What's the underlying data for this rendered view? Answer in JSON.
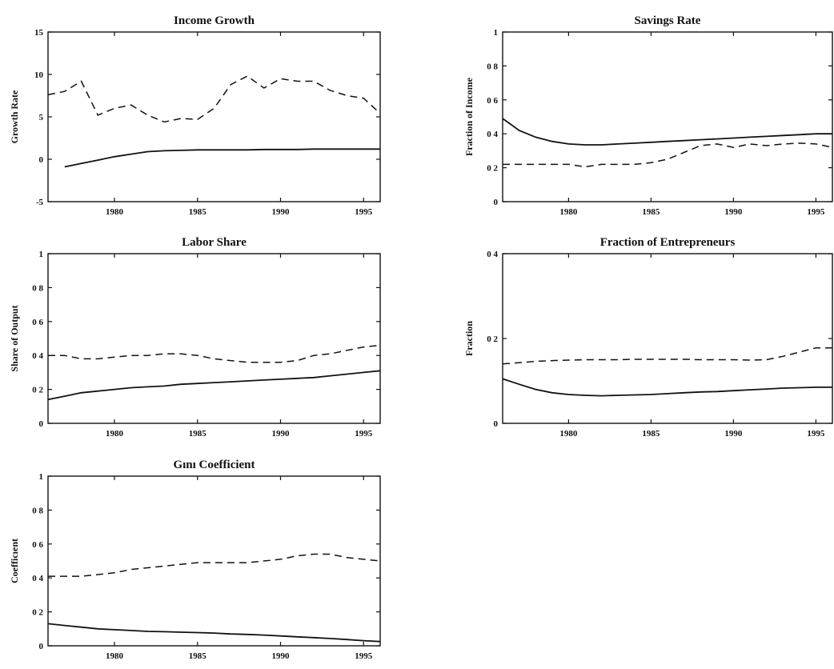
{
  "chart_data": [
    {
      "type": "line",
      "title": "Income Growth",
      "xlabel": "",
      "ylabel": "Growth Rate",
      "xlim": [
        1976,
        1996
      ],
      "ylim": [
        -5,
        15
      ],
      "xticks": [
        1980,
        1985,
        1990,
        1995
      ],
      "yticks": [
        -5,
        0,
        5,
        10,
        15
      ],
      "series": [
        {
          "style": "dashed",
          "x": [
            1976,
            1977,
            1978,
            1979,
            1980,
            1981,
            1982,
            1983,
            1984,
            1985,
            1986,
            1987,
            1988,
            1989,
            1990,
            1991,
            1992,
            1993,
            1994,
            1995,
            1996
          ],
          "values": [
            7.6,
            8.0,
            9.2,
            5.2,
            6.0,
            6.4,
            5.2,
            4.4,
            4.8,
            4.7,
            6.0,
            8.8,
            9.8,
            8.4,
            9.5,
            9.2,
            9.2,
            8.1,
            7.5,
            7.2,
            5.4
          ]
        },
        {
          "style": "solid",
          "x": [
            1977,
            1978,
            1979,
            1980,
            1981,
            1982,
            1983,
            1984,
            1985,
            1986,
            1987,
            1988,
            1989,
            1990,
            1991,
            1992,
            1993,
            1994,
            1995,
            1996
          ],
          "values": [
            -0.9,
            -0.5,
            -0.1,
            0.3,
            0.6,
            0.9,
            1.0,
            1.05,
            1.1,
            1.1,
            1.1,
            1.1,
            1.15,
            1.15,
            1.15,
            1.2,
            1.2,
            1.2,
            1.2,
            1.2
          ]
        }
      ]
    },
    {
      "type": "line",
      "title": "Savings Rate",
      "xlabel": "",
      "ylabel": "Fraction of Income",
      "xlim": [
        1976,
        1996
      ],
      "ylim": [
        0,
        1
      ],
      "xticks": [
        1980,
        1985,
        1990,
        1995
      ],
      "yticks": [
        0,
        0.2,
        0.4,
        0.6,
        0.8,
        1
      ],
      "ytick_labels": [
        "0",
        "0 2",
        "0 4",
        "0 6",
        "0 8",
        "1"
      ],
      "series": [
        {
          "style": "solid",
          "x": [
            1976,
            1977,
            1978,
            1979,
            1980,
            1981,
            1982,
            1983,
            1984,
            1985,
            1986,
            1987,
            1988,
            1989,
            1990,
            1991,
            1992,
            1993,
            1994,
            1995,
            1996
          ],
          "values": [
            0.49,
            0.42,
            0.38,
            0.355,
            0.34,
            0.335,
            0.335,
            0.34,
            0.345,
            0.35,
            0.355,
            0.36,
            0.365,
            0.37,
            0.375,
            0.38,
            0.385,
            0.39,
            0.395,
            0.4,
            0.4
          ]
        },
        {
          "style": "dashed",
          "x": [
            1976,
            1977,
            1978,
            1979,
            1980,
            1981,
            1982,
            1983,
            1984,
            1985,
            1986,
            1987,
            1988,
            1989,
            1990,
            1991,
            1992,
            1993,
            1994,
            1995,
            1996
          ],
          "values": [
            0.22,
            0.22,
            0.22,
            0.22,
            0.22,
            0.205,
            0.22,
            0.22,
            0.22,
            0.23,
            0.25,
            0.29,
            0.33,
            0.34,
            0.32,
            0.34,
            0.33,
            0.34,
            0.345,
            0.34,
            0.32
          ]
        }
      ]
    },
    {
      "type": "line",
      "title": "Labor Share",
      "xlabel": "",
      "ylabel": "Share of Output",
      "xlim": [
        1976,
        1996
      ],
      "ylim": [
        0,
        1
      ],
      "xticks": [
        1980,
        1985,
        1990,
        1995
      ],
      "yticks": [
        0,
        0.2,
        0.4,
        0.6,
        0.8,
        1
      ],
      "ytick_labels": [
        "0",
        "0 2",
        "0 4",
        "0 6",
        "0 8",
        "1"
      ],
      "series": [
        {
          "style": "dashed",
          "x": [
            1976,
            1977,
            1978,
            1979,
            1980,
            1981,
            1982,
            1983,
            1984,
            1985,
            1986,
            1987,
            1988,
            1989,
            1990,
            1991,
            1992,
            1993,
            1994,
            1995,
            1996
          ],
          "values": [
            0.4,
            0.4,
            0.38,
            0.38,
            0.39,
            0.4,
            0.4,
            0.41,
            0.41,
            0.4,
            0.38,
            0.37,
            0.36,
            0.36,
            0.36,
            0.37,
            0.4,
            0.41,
            0.43,
            0.45,
            0.46
          ]
        },
        {
          "style": "solid",
          "x": [
            1976,
            1977,
            1978,
            1979,
            1980,
            1981,
            1982,
            1983,
            1984,
            1985,
            1986,
            1987,
            1988,
            1989,
            1990,
            1991,
            1992,
            1993,
            1994,
            1995,
            1996
          ],
          "values": [
            0.14,
            0.16,
            0.18,
            0.19,
            0.2,
            0.21,
            0.215,
            0.22,
            0.23,
            0.235,
            0.24,
            0.245,
            0.25,
            0.255,
            0.26,
            0.265,
            0.27,
            0.28,
            0.29,
            0.3,
            0.31
          ]
        }
      ]
    },
    {
      "type": "line",
      "title": "Fraction of Entrepreneurs",
      "xlabel": "",
      "ylabel": "Fraction",
      "xlim": [
        1976,
        1996
      ],
      "ylim": [
        0,
        0.4
      ],
      "xticks": [
        1980,
        1985,
        1990,
        1995
      ],
      "yticks": [
        0,
        0.2,
        0.4
      ],
      "ytick_labels": [
        "0",
        "0 2",
        "0 4"
      ],
      "series": [
        {
          "style": "dashed",
          "x": [
            1976,
            1977,
            1978,
            1979,
            1980,
            1981,
            1982,
            1983,
            1984,
            1985,
            1986,
            1987,
            1988,
            1989,
            1990,
            1991,
            1992,
            1993,
            1994,
            1995,
            1996
          ],
          "values": [
            0.14,
            0.143,
            0.146,
            0.148,
            0.149,
            0.15,
            0.15,
            0.15,
            0.151,
            0.151,
            0.151,
            0.151,
            0.15,
            0.15,
            0.15,
            0.149,
            0.15,
            0.158,
            0.168,
            0.178,
            0.178
          ]
        },
        {
          "style": "solid",
          "x": [
            1976,
            1977,
            1978,
            1979,
            1980,
            1981,
            1982,
            1983,
            1984,
            1985,
            1986,
            1987,
            1988,
            1989,
            1990,
            1991,
            1992,
            1993,
            1994,
            1995,
            1996
          ],
          "values": [
            0.105,
            0.092,
            0.08,
            0.072,
            0.068,
            0.066,
            0.065,
            0.066,
            0.067,
            0.068,
            0.07,
            0.072,
            0.074,
            0.075,
            0.077,
            0.079,
            0.081,
            0.083,
            0.084,
            0.085,
            0.085
          ]
        }
      ]
    },
    {
      "type": "line",
      "title": "Gını Coefficient",
      "xlabel": "",
      "ylabel": "Coefficıent",
      "xlim": [
        1976,
        1996
      ],
      "ylim": [
        0,
        1
      ],
      "xticks": [
        1980,
        1985,
        1990,
        1995
      ],
      "yticks": [
        0,
        0.2,
        0.4,
        0.6,
        0.8,
        1
      ],
      "ytick_labels": [
        "0",
        "0 2",
        "0 4",
        "0 6",
        "0 8",
        "1"
      ],
      "series": [
        {
          "style": "dashed",
          "x": [
            1976,
            1977,
            1978,
            1979,
            1980,
            1981,
            1982,
            1983,
            1984,
            1985,
            1986,
            1987,
            1988,
            1989,
            1990,
            1991,
            1992,
            1993,
            1994,
            1995,
            1996
          ],
          "values": [
            0.41,
            0.41,
            0.41,
            0.42,
            0.43,
            0.45,
            0.46,
            0.47,
            0.48,
            0.49,
            0.49,
            0.49,
            0.49,
            0.5,
            0.51,
            0.53,
            0.54,
            0.54,
            0.52,
            0.51,
            0.5
          ]
        },
        {
          "style": "solid",
          "x": [
            1976,
            1977,
            1978,
            1979,
            1980,
            1981,
            1982,
            1983,
            1984,
            1985,
            1986,
            1987,
            1988,
            1989,
            1990,
            1991,
            1992,
            1993,
            1994,
            1995,
            1996
          ],
          "values": [
            0.13,
            0.12,
            0.11,
            0.1,
            0.095,
            0.09,
            0.085,
            0.083,
            0.08,
            0.078,
            0.075,
            0.07,
            0.067,
            0.063,
            0.058,
            0.053,
            0.048,
            0.043,
            0.037,
            0.03,
            0.025
          ]
        }
      ]
    }
  ]
}
